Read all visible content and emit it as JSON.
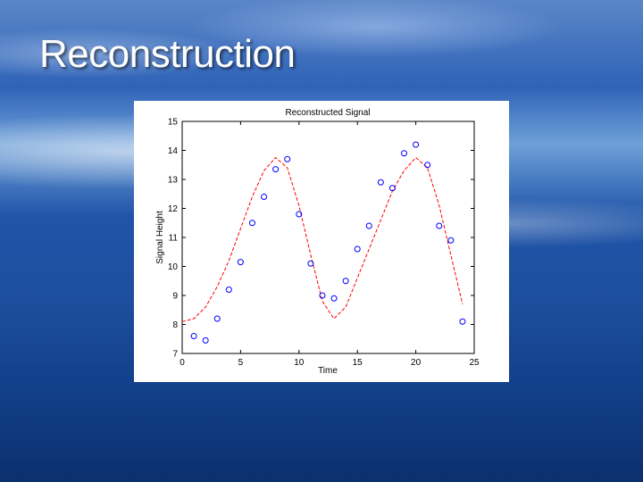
{
  "slide": {
    "title": "Reconstruction"
  },
  "chart_data": {
    "type": "line",
    "title": "Reconstructed Signal",
    "xlabel": "Time",
    "ylabel": "Signal Height",
    "xlim": [
      0,
      25
    ],
    "ylim": [
      7,
      15
    ],
    "xticks": [
      0,
      5,
      10,
      15,
      20,
      25
    ],
    "yticks": [
      7,
      8,
      9,
      10,
      11,
      12,
      13,
      14,
      15
    ],
    "grid": false,
    "series": [
      {
        "marker": "circle",
        "line": "none",
        "color": "#0000ff",
        "x": [
          1,
          2,
          3,
          4,
          5,
          6,
          7,
          8,
          9,
          10,
          11,
          12,
          13,
          14,
          15,
          16,
          17,
          18,
          19,
          20,
          21,
          22,
          23,
          24
        ],
        "y": [
          7.6,
          7.45,
          8.2,
          9.2,
          10.15,
          11.5,
          12.4,
          13.35,
          13.7,
          11.8,
          10.1,
          9.0,
          8.9,
          9.5,
          10.6,
          11.4,
          12.9,
          12.7,
          13.9,
          14.2,
          13.5,
          11.4,
          10.9,
          8.1
        ]
      },
      {
        "marker": "none",
        "line": "dashed",
        "color": "#ff0000",
        "x": [
          0,
          1,
          2,
          3,
          4,
          5,
          6,
          7,
          8,
          9,
          10,
          11,
          12,
          13,
          14,
          15,
          16,
          17,
          18,
          19,
          20,
          21,
          22,
          23,
          24
        ],
        "y": [
          8.1,
          8.2,
          8.6,
          9.3,
          10.2,
          11.3,
          12.4,
          13.3,
          13.75,
          13.4,
          12.1,
          10.4,
          8.8,
          8.2,
          8.6,
          9.6,
          10.6,
          11.6,
          12.6,
          13.3,
          13.75,
          13.4,
          12.1,
          10.4,
          8.7
        ]
      }
    ]
  }
}
